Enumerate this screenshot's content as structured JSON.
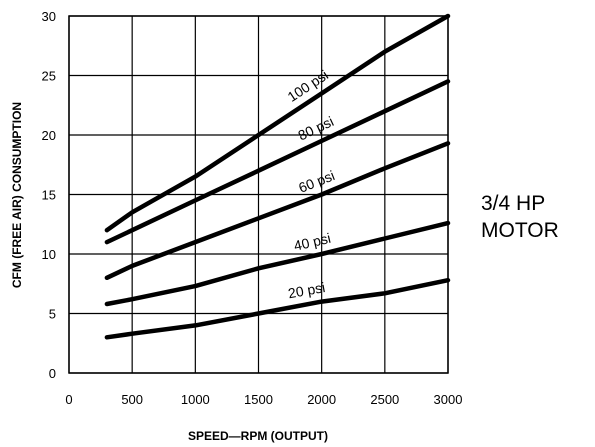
{
  "chart_data": {
    "type": "line",
    "title": "",
    "xlabel": "SPEED—RPM (OUTPUT)",
    "ylabel": "CFM (FREE AIR) CONSUMPTION",
    "xlim": [
      0,
      3000
    ],
    "ylim": [
      0,
      30
    ],
    "xticks": [
      0,
      500,
      1000,
      1500,
      2000,
      2500,
      3000
    ],
    "yticks": [
      0,
      5,
      10,
      15,
      20,
      25,
      30
    ],
    "grid": true,
    "series": [
      {
        "name": "100 psi",
        "x": [
          300,
          500,
          1000,
          1500,
          2000,
          2500,
          3000
        ],
        "y": [
          12,
          13.5,
          16.5,
          20,
          23.5,
          27,
          30
        ]
      },
      {
        "name": "80 psi",
        "x": [
          300,
          500,
          1000,
          1500,
          2000,
          2500,
          3000
        ],
        "y": [
          11,
          12,
          14.5,
          17,
          19.5,
          22,
          24.5
        ]
      },
      {
        "name": "60 psi",
        "x": [
          300,
          500,
          1000,
          1500,
          2000,
          2500,
          3000
        ],
        "y": [
          8,
          9,
          11,
          13,
          15,
          17.2,
          19.3
        ]
      },
      {
        "name": "40 psi",
        "x": [
          300,
          500,
          1000,
          1500,
          2000,
          2500,
          3000
        ],
        "y": [
          5.8,
          6.2,
          7.3,
          8.8,
          10,
          11.3,
          12.6
        ]
      },
      {
        "name": "20 psi",
        "x": [
          300,
          500,
          1000,
          1500,
          2000,
          2500,
          3000
        ],
        "y": [
          3,
          3.3,
          4,
          5,
          6,
          6.7,
          7.8
        ]
      }
    ]
  },
  "side_annotation": {
    "line1": "3/4 HP",
    "line2": "MOTOR"
  }
}
